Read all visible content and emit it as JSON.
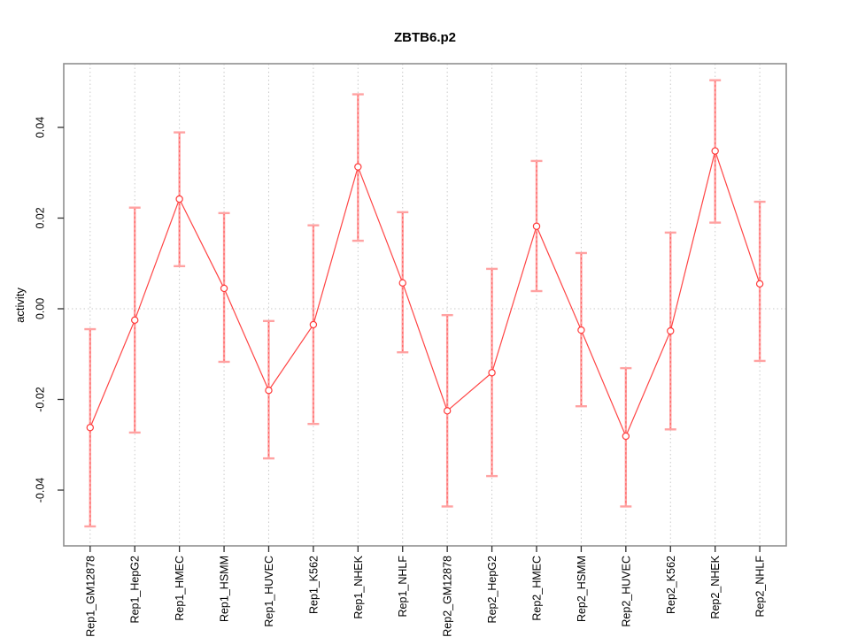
{
  "title": "ZBTB6.p2",
  "chart_data": {
    "type": "line",
    "title": "ZBTB6.p2",
    "xlabel": "",
    "ylabel": "activity",
    "ylim": [
      -0.052,
      0.054
    ],
    "yticks": [
      0.04,
      0.02,
      0.0,
      -0.02,
      -0.04
    ],
    "ytick_labels": [
      "0.04",
      "0.02",
      "0.00",
      "-0.02",
      "-0.04"
    ],
    "grid": "vertical dotted line per category; horizontal dotted line at y=0; legend none",
    "categories": [
      "Rep1_GM12878",
      "Rep1_HepG2",
      "Rep1_HMEC",
      "Rep1_HSMM",
      "Rep1_HUVEC",
      "Rep1_K562",
      "Rep1_NHEK",
      "Rep1_NHLF",
      "Rep2_GM12878",
      "Rep2_HepG2",
      "Rep2_HMEC",
      "Rep2_HSMM",
      "Rep2_HUVEC",
      "Rep2_K562",
      "Rep2_NHEK",
      "Rep2_NHLF"
    ],
    "series": [
      {
        "name": "activity",
        "marker": "open-circle",
        "values": [
          -0.0262,
          -0.0025,
          0.0242,
          0.0045,
          -0.018,
          -0.0035,
          0.0313,
          0.0057,
          -0.0225,
          -0.0141,
          0.0182,
          -0.0047,
          -0.0281,
          -0.0049,
          0.0348,
          0.0055
        ],
        "err_high": [
          -0.0045,
          0.0223,
          0.0389,
          0.0211,
          -0.0027,
          0.0184,
          0.0473,
          0.0213,
          -0.0014,
          0.0088,
          0.0326,
          0.0123,
          -0.0131,
          0.0168,
          0.0504,
          0.0236
        ],
        "err_low": [
          -0.048,
          -0.0273,
          0.0094,
          -0.0117,
          -0.033,
          -0.0254,
          0.015,
          -0.0096,
          -0.0436,
          -0.0369,
          0.0039,
          -0.0215,
          -0.0436,
          -0.0266,
          0.019,
          -0.0115
        ]
      }
    ],
    "colors": {
      "line": "#ff4545",
      "point": "#ff3b3b",
      "error_bar": "#ffa2a2",
      "error_bar_dash": "#ff5c5c",
      "grid": "#c9c9c9",
      "border": "#8f8f8f",
      "tick": "#2e2e2e",
      "text": "#000000",
      "background": "#ffffff"
    }
  }
}
